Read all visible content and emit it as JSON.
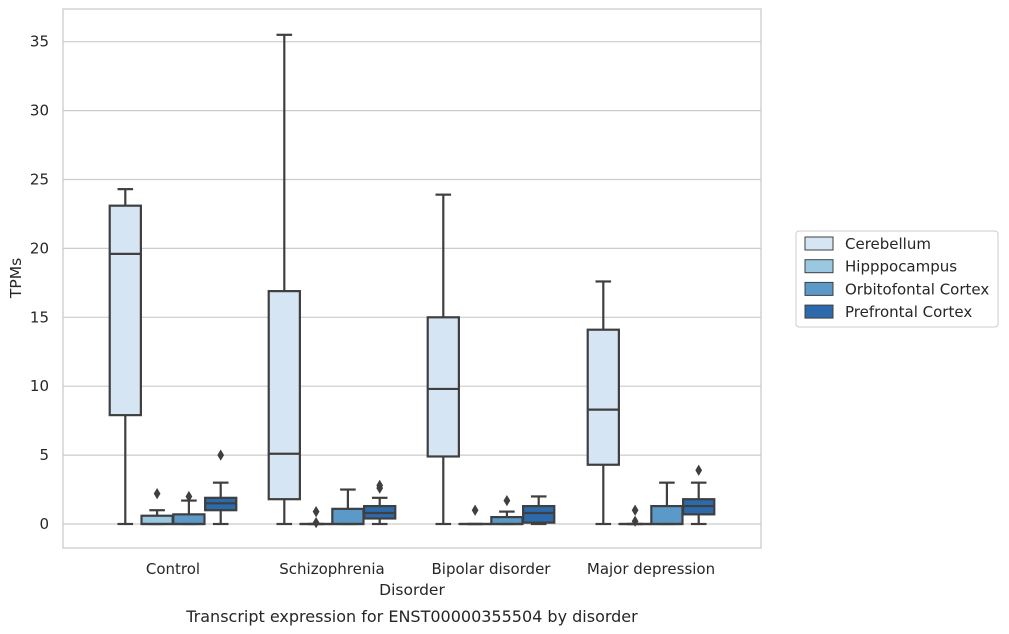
{
  "chart_data": {
    "type": "boxplot",
    "xlabel": "Disorder",
    "ylabel": "TPMs",
    "caption": "Transcript expression for ENST00000355504 by disorder",
    "categories": [
      "Control",
      "Schizophrenia",
      "Bipolar disorder",
      "Major depression"
    ],
    "yticks": [
      0,
      5,
      10,
      15,
      20,
      25,
      30,
      35
    ],
    "ylim": [
      -1.7,
      37.2
    ],
    "grid": true,
    "legend_position": "right",
    "series": [
      {
        "name": "Cerebellum",
        "color": "#d6e5f4",
        "boxes": [
          {
            "whislo": 0,
            "q1": 7.9,
            "med": 19.6,
            "q3": 23.1,
            "whishi": 24.3,
            "fliers": []
          },
          {
            "whislo": 0,
            "q1": 1.8,
            "med": 5.1,
            "q3": 16.9,
            "whishi": 35.5,
            "fliers": []
          },
          {
            "whislo": 0,
            "q1": 4.9,
            "med": 9.8,
            "q3": 15.0,
            "whishi": 23.9,
            "fliers": []
          },
          {
            "whislo": 0,
            "q1": 4.3,
            "med": 8.3,
            "q3": 14.1,
            "whishi": 17.6,
            "fliers": []
          }
        ]
      },
      {
        "name": "Hipppocampus",
        "color": "#9ac8e1",
        "boxes": [
          {
            "whislo": 0,
            "q1": 0,
            "med": 0,
            "q3": 0.6,
            "whishi": 1.0,
            "fliers": [
              2.2
            ]
          },
          {
            "whislo": 0,
            "q1": 0,
            "med": 0,
            "q3": 0,
            "whishi": 0,
            "fliers": [
              0.9,
              0.1
            ]
          },
          {
            "whislo": 0,
            "q1": 0,
            "med": 0,
            "q3": 0,
            "whishi": 0,
            "fliers": [
              1.0
            ]
          },
          {
            "whislo": 0,
            "q1": 0,
            "med": 0,
            "q3": 0,
            "whishi": 0,
            "fliers": [
              1.0,
              0.2
            ]
          }
        ]
      },
      {
        "name": "Orbitofontal Cortex",
        "color": "#5b9ac8",
        "boxes": [
          {
            "whislo": 0,
            "q1": 0,
            "med": 0,
            "q3": 0.7,
            "whishi": 1.7,
            "fliers": [
              2.0
            ]
          },
          {
            "whislo": 0,
            "q1": 0,
            "med": 0,
            "q3": 1.1,
            "whishi": 2.5,
            "fliers": []
          },
          {
            "whislo": 0,
            "q1": 0,
            "med": 0,
            "q3": 0.5,
            "whishi": 0.9,
            "fliers": [
              1.7
            ]
          },
          {
            "whislo": 0,
            "q1": 0,
            "med": 0,
            "q3": 1.3,
            "whishi": 3.0,
            "fliers": []
          }
        ]
      },
      {
        "name": "Prefrontal Cortex",
        "color": "#2d6aab",
        "boxes": [
          {
            "whislo": 0,
            "q1": 1.0,
            "med": 1.5,
            "q3": 1.9,
            "whishi": 3.0,
            "fliers": [
              5.0
            ]
          },
          {
            "whislo": 0,
            "q1": 0.4,
            "med": 0.8,
            "q3": 1.3,
            "whishi": 1.9,
            "fliers": [
              2.6,
              2.8
            ]
          },
          {
            "whislo": 0,
            "q1": 0.1,
            "med": 0.8,
            "q3": 1.3,
            "whishi": 2.0,
            "fliers": []
          },
          {
            "whislo": 0,
            "q1": 0.7,
            "med": 1.3,
            "q3": 1.8,
            "whishi": 3.0,
            "fliers": [
              3.9
            ]
          }
        ]
      }
    ]
  }
}
